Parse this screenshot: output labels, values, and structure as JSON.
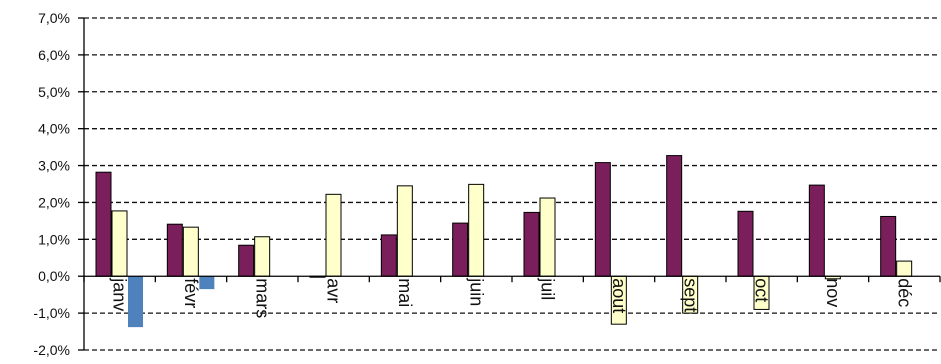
{
  "chart_data": {
    "type": "bar",
    "title": "",
    "xlabel": "",
    "ylabel": "",
    "ylim": [
      -2.0,
      7.0
    ],
    "y_ticks": [
      "-2,0%",
      "-1,0%",
      "0,0%",
      "1,0%",
      "2,0%",
      "3,0%",
      "4,0%",
      "5,0%",
      "6,0%",
      "7,0%"
    ],
    "y_tick_values": [
      -2,
      -1,
      0,
      1,
      2,
      3,
      4,
      5,
      6,
      7
    ],
    "grid": "horizontal dashed",
    "legend": "none",
    "tick_label_rotation": "90 degrees, inside plot crossing zero line",
    "categories": [
      "janv",
      "févr",
      "mars",
      "avr",
      "mai",
      "juin",
      "juil",
      "aout",
      "sept",
      "oct",
      "nov",
      "déc"
    ],
    "series": [
      {
        "color": "#7B1F5C",
        "values": [
          2.82,
          1.41,
          0.84,
          -0.02,
          1.12,
          1.44,
          1.73,
          3.08,
          3.27,
          1.76,
          2.47,
          1.62
        ]
      },
      {
        "color": "#FFFFCC",
        "values": [
          1.77,
          1.33,
          1.07,
          2.22,
          2.45,
          2.49,
          2.12,
          -1.3,
          -1.0,
          -0.9,
          -0.07,
          0.41
        ]
      },
      {
        "color": "#4F81BD",
        "values": [
          -1.38,
          -0.35,
          null,
          null,
          null,
          null,
          null,
          null,
          null,
          null,
          null,
          null
        ]
      }
    ]
  }
}
